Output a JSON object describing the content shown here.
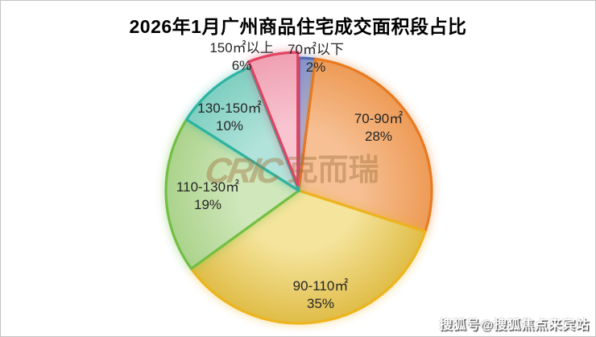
{
  "chart_data": {
    "type": "pie",
    "title": "2026年1月广州商品住宅成交面积段占比",
    "unit": "%",
    "start_angle_deg": 0,
    "direction": "clockwise",
    "legend_position": "none",
    "slices": [
      {
        "label": "70㎡以下",
        "value": 2,
        "pct": "2%",
        "fill": "#7d99d2",
        "fill_light": "#a9bce5",
        "stroke": "#4a6cbd"
      },
      {
        "label": "70-90㎡",
        "value": 28,
        "pct": "28%",
        "fill": "#ee9b56",
        "fill_light": "#f6c094",
        "stroke": "#e87a20"
      },
      {
        "label": "90-110㎡",
        "value": 35,
        "pct": "35%",
        "fill": "#e0bd48",
        "fill_light": "#f4e49c",
        "stroke": "#edb41d"
      },
      {
        "label": "110-130㎡",
        "value": 19,
        "pct": "19%",
        "fill": "#abd38c",
        "fill_light": "#d0e7bb",
        "stroke": "#72bf44"
      },
      {
        "label": "130-150㎡",
        "value": 10,
        "pct": "10%",
        "fill": "#7fcfc1",
        "fill_light": "#b2e3da",
        "stroke": "#2eb3a3"
      },
      {
        "label": "150㎡以上",
        "value": 6,
        "pct": "6%",
        "fill": "#f0a0b2",
        "fill_light": "#f7c4d0",
        "stroke": "#e14363"
      }
    ]
  },
  "watermark": {
    "logo": "CRIC",
    "text": "克而瑞",
    "color": "#9e703c"
  },
  "footer_watermark": {
    "text": "搜狐号@搜狐焦点来宾站"
  }
}
